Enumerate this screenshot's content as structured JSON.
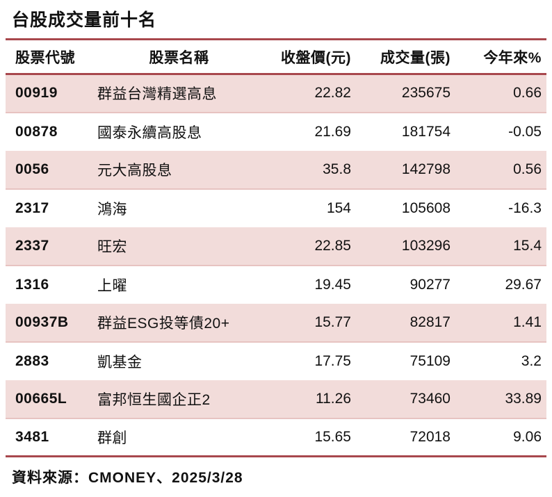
{
  "title": "台股成交量前十名",
  "colors": {
    "rule_red": "#a8474d",
    "row_pink": "#f2dcda",
    "row_pink_border": "#e7c3c1",
    "text": "#111111"
  },
  "table": {
    "headers": [
      "股票代號",
      "股票名稱",
      "收盤價(元)",
      "成交量(張)",
      "今年來%"
    ],
    "rows": [
      {
        "code": "00919",
        "name": "群益台灣精選高息",
        "price": "22.82",
        "volume": "235675",
        "ytd": "0.66"
      },
      {
        "code": "00878",
        "name": "國泰永續高股息",
        "price": "21.69",
        "volume": "181754",
        "ytd": "-0.05"
      },
      {
        "code": "0056",
        "name": "元大高股息",
        "price": "35.8",
        "volume": "142798",
        "ytd": "0.56"
      },
      {
        "code": "2317",
        "name": "鴻海",
        "price": "154",
        "volume": "105608",
        "ytd": "-16.3"
      },
      {
        "code": "2337",
        "name": "旺宏",
        "price": "22.85",
        "volume": "103296",
        "ytd": "15.4"
      },
      {
        "code": "1316",
        "name": "上曜",
        "price": "19.45",
        "volume": "90277",
        "ytd": "29.67"
      },
      {
        "code": "00937B",
        "name": "群益ESG投等債20+",
        "price": "15.77",
        "volume": "82817",
        "ytd": "1.41"
      },
      {
        "code": "2883",
        "name": "凱基金",
        "price": "17.75",
        "volume": "75109",
        "ytd": "3.2"
      },
      {
        "code": "00665L",
        "name": "富邦恒生國企正2",
        "price": "11.26",
        "volume": "73460",
        "ytd": "33.89"
      },
      {
        "code": "3481",
        "name": "群創",
        "price": "15.65",
        "volume": "72018",
        "ytd": "9.06"
      }
    ]
  },
  "footer": {
    "source_label": "資料來源：CMONEY、2025/3/28"
  },
  "chart_data": {
    "type": "table",
    "title": "台股成交量前十名",
    "columns": [
      "股票代號",
      "股票名稱",
      "收盤價(元)",
      "成交量(張)",
      "今年來%"
    ],
    "rows": [
      [
        "00919",
        "群益台灣精選高息",
        22.82,
        235675,
        0.66
      ],
      [
        "00878",
        "國泰永續高股息",
        21.69,
        181754,
        -0.05
      ],
      [
        "0056",
        "元大高股息",
        35.8,
        142798,
        0.56
      ],
      [
        "2317",
        "鴻海",
        154,
        105608,
        -16.3
      ],
      [
        "2337",
        "旺宏",
        22.85,
        103296,
        15.4
      ],
      [
        "1316",
        "上曜",
        19.45,
        90277,
        29.67
      ],
      [
        "00937B",
        "群益ESG投等債20+",
        15.77,
        82817,
        1.41
      ],
      [
        "2883",
        "凱基金",
        17.75,
        75109,
        3.2
      ],
      [
        "00665L",
        "富邦恒生國企正2",
        11.26,
        73460,
        33.89
      ],
      [
        "3481",
        "群創",
        15.65,
        72018,
        9.06
      ]
    ],
    "source": "資料來源：CMONEY、2025/3/28",
    "layout": {
      "zebra_rows": "odd rows pink",
      "header_rules": "red horizontal rules above and below header and below last row"
    }
  }
}
